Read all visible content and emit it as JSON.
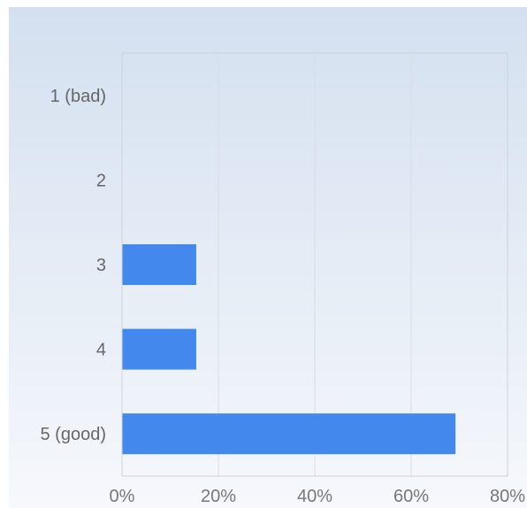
{
  "chart_data": {
    "type": "bar",
    "orientation": "horizontal",
    "categories": [
      "1 (bad)",
      "2",
      "3",
      "4",
      "5 (good)"
    ],
    "values": [
      0,
      0,
      15.4,
      15.4,
      69.2
    ],
    "unit": "%",
    "xlim": [
      0,
      80
    ],
    "x_ticks": [
      0,
      20,
      40,
      60,
      80
    ],
    "x_tick_labels": [
      "0%",
      "20%",
      "40%",
      "60%",
      "80%"
    ],
    "title": "",
    "xlabel": "",
    "ylabel": "",
    "grid": "vertical",
    "legend": "none",
    "bar_color": "#4388ec",
    "grid_color": "#d9dde4",
    "axis_color": "#cfd3da"
  }
}
